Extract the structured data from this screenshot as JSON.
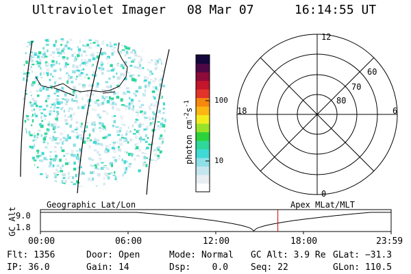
{
  "header": {
    "instrument": "Ultraviolet Imager",
    "date": "08 Mar 07",
    "time": "16:14:55 UT"
  },
  "colorbar": {
    "unit_label": "photon cm",
    "unit_sup": "-2",
    "unit_s": "s",
    "unit_s_sup": "-1",
    "ticks": [
      "100",
      "10"
    ],
    "colors": [
      "#ffffff",
      "#e8eef2",
      "#c6e6ee",
      "#8edfe6",
      "#3fd9d6",
      "#2fd79a",
      "#2cd23a",
      "#9ae22a",
      "#f2ec1e",
      "#fbb614",
      "#f6870f",
      "#e2342a",
      "#c3152b",
      "#8d0b38",
      "#4e0845",
      "#14073c"
    ]
  },
  "polar": {
    "mlt_labels": [
      "12",
      "18",
      "6",
      "0"
    ],
    "lat_labels": [
      "60",
      "70",
      "80"
    ]
  },
  "altitude_plot": {
    "left_title": "Geographic Lat/Lon",
    "right_title": "Apex MLat/MLT",
    "ylabel": "GC Alt",
    "yticks": [
      "9.0",
      "1.8"
    ],
    "xticks": [
      "00:00",
      "06:00",
      "12:00",
      "18:00",
      "23:59"
    ],
    "current_time_marker": "16:14:55",
    "marker_color": "#cc0000"
  },
  "status": {
    "flt": "Flt: 1356",
    "door": "Door: Open",
    "mode": "Mode: Normal",
    "gc_alt": "GC Alt: 3.9 Re",
    "glat": "GLat: −31.3",
    "ip": "IP: 36.0",
    "gain": "Gain: 14",
    "dsp": "Dsp:    0.0",
    "seq": "Seq: 22",
    "glon": "GLon: 110.5"
  }
}
